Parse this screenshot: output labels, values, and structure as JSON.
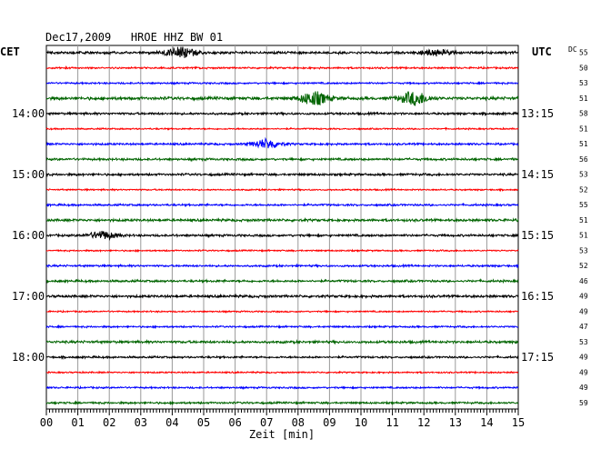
{
  "chart_data": {
    "type": "line",
    "title": "Dec17,2009   HROE HHZ BW 01",
    "left_zone": "CET",
    "right_zone": "UTC",
    "dc_label": "DC",
    "xlabel": "Zeit [min]",
    "xlim": [
      0,
      15
    ],
    "x_ticks": [
      "00",
      "01",
      "02",
      "03",
      "04",
      "05",
      "06",
      "07",
      "08",
      "09",
      "10",
      "11",
      "12",
      "13",
      "14",
      "15"
    ],
    "grid": true,
    "trace_colors": [
      "#000000",
      "#ff0000",
      "#0000ff",
      "#006400"
    ],
    "traces_per_hour": 4,
    "left_time_labels": [
      {
        "trace": 4,
        "label": "14:00"
      },
      {
        "trace": 8,
        "label": "15:00"
      },
      {
        "trace": 12,
        "label": "16:00"
      },
      {
        "trace": 16,
        "label": "17:00"
      },
      {
        "trace": 20,
        "label": "18:00"
      }
    ],
    "right_time_labels": [
      {
        "trace": 4,
        "label": "13:15"
      },
      {
        "trace": 8,
        "label": "14:15"
      },
      {
        "trace": 12,
        "label": "15:15"
      },
      {
        "trace": 16,
        "label": "16:15"
      },
      {
        "trace": 20,
        "label": "17:15"
      }
    ],
    "dc_values": [
      "55",
      "50",
      "53",
      "51",
      "58",
      "51",
      "51",
      "56",
      "53",
      "52",
      "55",
      "51",
      "51",
      "53",
      "52",
      "46",
      "49",
      "49",
      "47",
      "53",
      "49",
      "49",
      "49",
      "59"
    ],
    "amplitudes": [
      1.0,
      0.7,
      0.7,
      1.2,
      0.9,
      0.6,
      0.8,
      0.9,
      0.9,
      0.6,
      0.8,
      1.0,
      0.9,
      0.6,
      0.8,
      0.9,
      1.0,
      0.6,
      0.7,
      1.0,
      0.8,
      0.6,
      0.7,
      0.8
    ],
    "events": [
      {
        "trace": 0,
        "minute": 4.3,
        "amp": 6
      },
      {
        "trace": 0,
        "minute": 12.4,
        "amp": 3
      },
      {
        "trace": 3,
        "minute": 8.5,
        "amp": 7
      },
      {
        "trace": 3,
        "minute": 11.7,
        "amp": 7
      },
      {
        "trace": 6,
        "minute": 7.0,
        "amp": 5
      },
      {
        "trace": 12,
        "minute": 1.8,
        "amp": 4
      }
    ]
  }
}
